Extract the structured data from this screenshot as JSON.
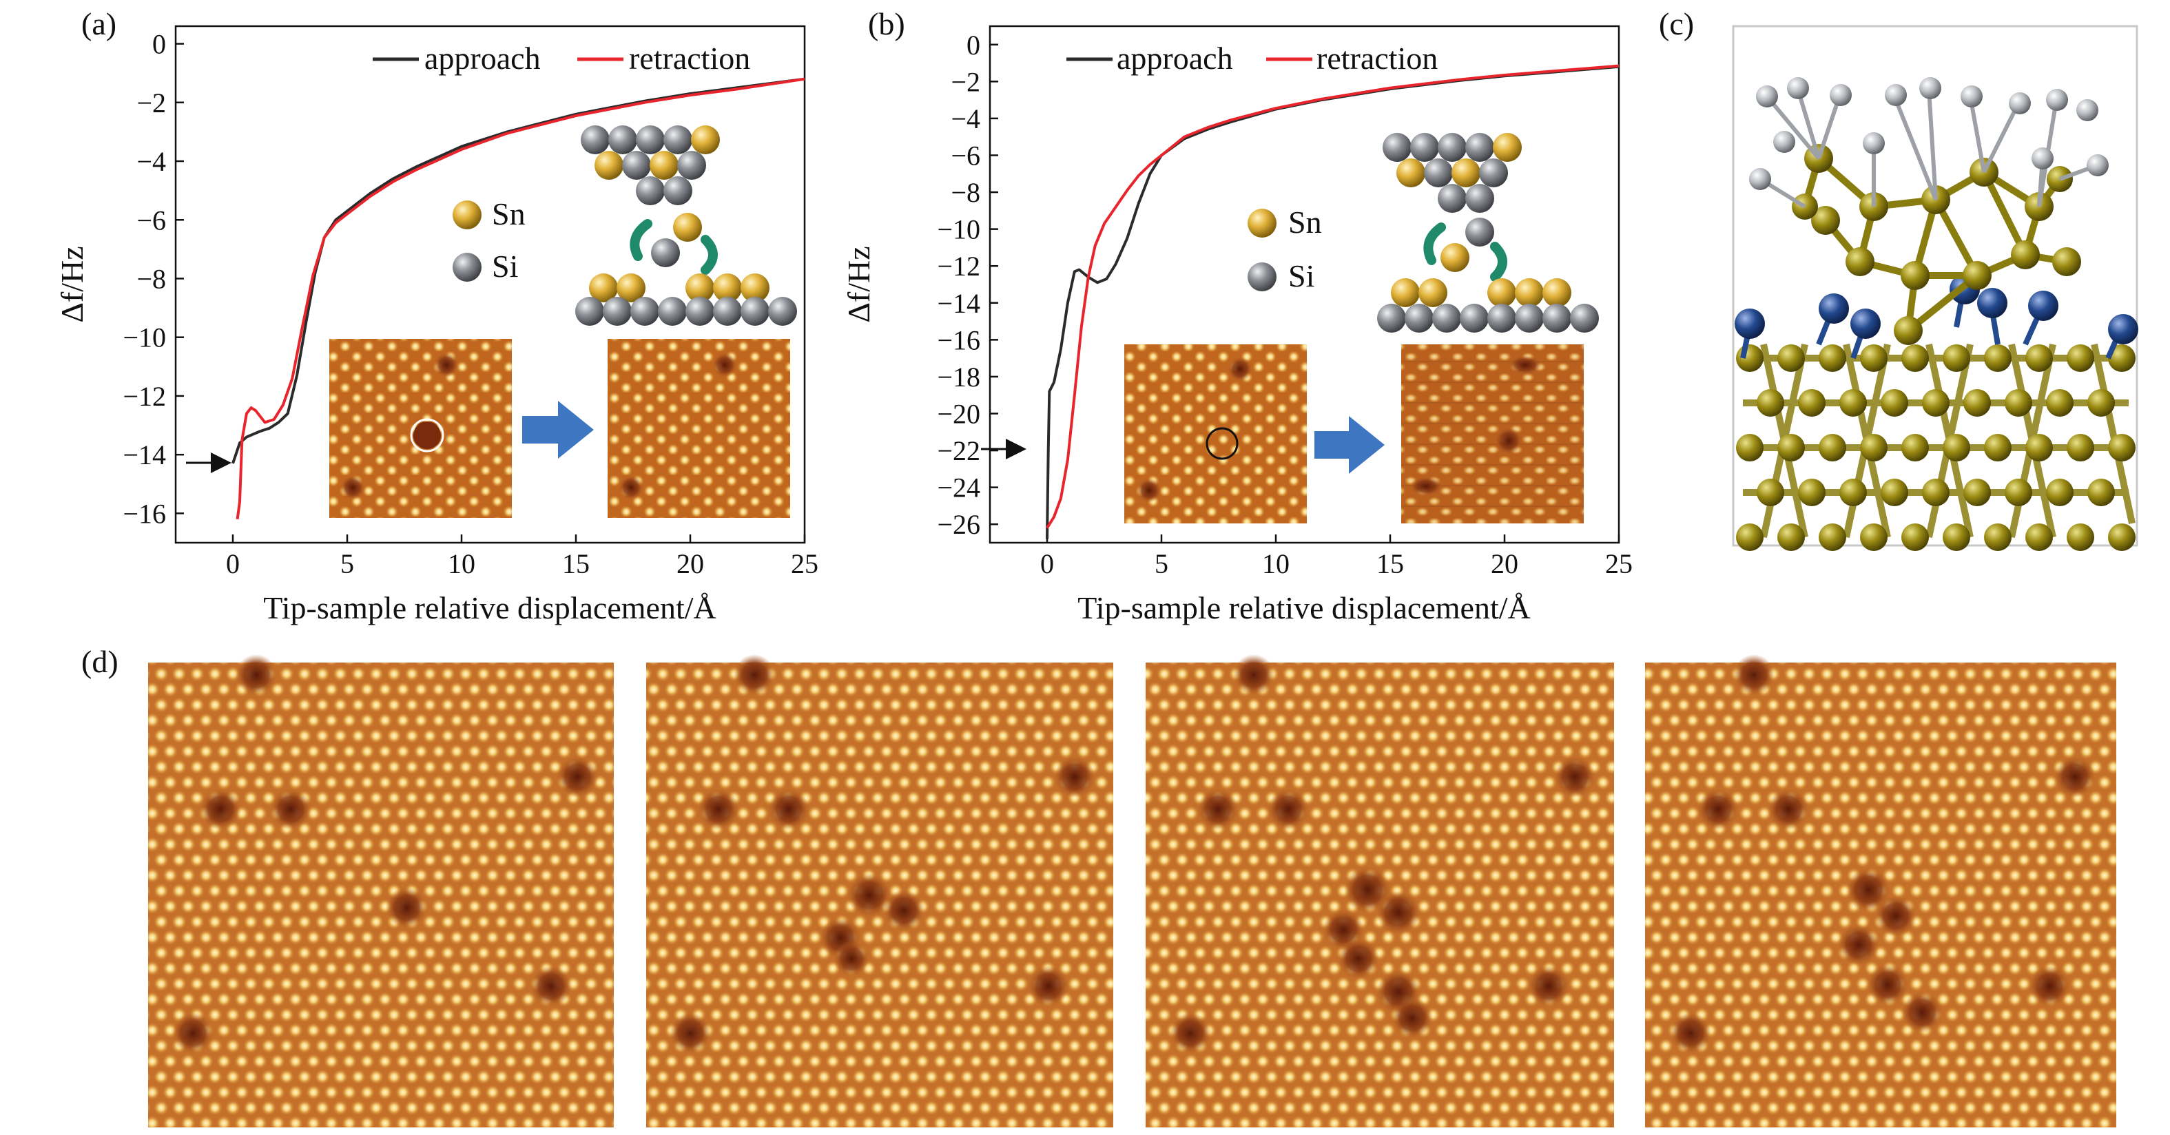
{
  "panels": {
    "a": {
      "label": "(a)"
    },
    "b": {
      "label": "(b)"
    },
    "c": {
      "label": "(c)"
    },
    "d": {
      "label": "(d)"
    }
  },
  "atoms": {
    "sn": "Sn",
    "si": "Si"
  },
  "colors": {
    "approach": "#2b2b2b",
    "retraction": "#e8242c",
    "sn_atom": "#d7a81e",
    "si_atom": "#8a8d92",
    "arrow_blue": "#3f76c2",
    "arrow_green": "#1f8a6a",
    "n_atom": "#23498f",
    "substrate_atom": "#9a8a12",
    "h_atom": "#b9bcc1"
  },
  "chart_data": [
    {
      "type": "line",
      "panel": "a",
      "xlabel": "Tip-sample relative displacement/Å",
      "ylabel": "Δf/Hz",
      "xlim": [
        -2.5,
        25
      ],
      "ylim": [
        -17,
        0.6
      ],
      "xticks": [
        0,
        5,
        10,
        15,
        20,
        25
      ],
      "yticks": [
        0,
        -2,
        -4,
        -6,
        -8,
        -10,
        -12,
        -14,
        -16
      ],
      "legend_position": "top-right",
      "grid": false,
      "series": [
        {
          "name": "approach",
          "x": [
            0.0,
            0.3,
            0.6,
            0.9,
            1.2,
            1.6,
            2.0,
            2.4,
            2.8,
            3.2,
            3.6,
            4.0,
            4.5,
            5.0,
            6.0,
            7.0,
            8.0,
            10.0,
            12.0,
            15.0,
            18.0,
            20.0,
            22.0,
            25.0
          ],
          "y": [
            -14.3,
            -13.6,
            -13.4,
            -13.3,
            -13.2,
            -13.1,
            -12.9,
            -12.6,
            -11.3,
            -9.5,
            -7.8,
            -6.6,
            -6.0,
            -5.7,
            -5.1,
            -4.6,
            -4.2,
            -3.5,
            -3.0,
            -2.4,
            -1.95,
            -1.7,
            -1.5,
            -1.2
          ]
        },
        {
          "name": "retraction",
          "x": [
            0.2,
            0.3,
            0.4,
            0.6,
            0.8,
            1.0,
            1.4,
            1.8,
            2.2,
            2.6,
            3.0,
            3.5,
            4.0,
            4.5,
            5.0,
            6.0,
            7.0,
            8.0,
            10.0,
            12.0,
            15.0,
            18.0,
            20.0,
            22.0,
            25.0
          ],
          "y": [
            -16.2,
            -15.6,
            -13.5,
            -12.6,
            -12.4,
            -12.5,
            -12.9,
            -12.8,
            -12.3,
            -11.4,
            -9.8,
            -7.9,
            -6.6,
            -6.1,
            -5.8,
            -5.2,
            -4.7,
            -4.3,
            -3.6,
            -3.05,
            -2.45,
            -2.0,
            -1.75,
            -1.55,
            -1.2
          ]
        }
      ]
    },
    {
      "type": "line",
      "panel": "b",
      "xlabel": "Tip-sample relative displacement/Å",
      "ylabel": "Δf/Hz",
      "xlim": [
        -2.5,
        25
      ],
      "ylim": [
        -27,
        1
      ],
      "xticks": [
        0,
        5,
        10,
        15,
        20,
        25
      ],
      "yticks": [
        0,
        -2,
        -4,
        -6,
        -8,
        -10,
        -12,
        -14,
        -16,
        -18,
        -20,
        -22,
        -24,
        -26
      ],
      "legend_position": "top-right",
      "grid": false,
      "series": [
        {
          "name": "approach",
          "x": [
            0.0,
            0.05,
            0.1,
            0.3,
            0.6,
            0.9,
            1.2,
            1.4,
            1.8,
            2.2,
            2.6,
            3.0,
            3.5,
            4.0,
            4.5,
            5.0,
            6.0,
            7.0,
            8.0,
            10.0,
            12.0,
            15.0,
            18.0,
            20.0,
            22.0,
            25.0
          ],
          "y": [
            -26.8,
            -22.0,
            -18.8,
            -18.3,
            -16.5,
            -14.0,
            -12.3,
            -12.2,
            -12.6,
            -12.9,
            -12.7,
            -11.9,
            -10.5,
            -8.6,
            -7.0,
            -6.0,
            -5.1,
            -4.6,
            -4.2,
            -3.5,
            -3.0,
            -2.4,
            -1.95,
            -1.7,
            -1.5,
            -1.2
          ]
        },
        {
          "name": "retraction",
          "x": [
            0.0,
            0.3,
            0.6,
            0.9,
            1.2,
            1.5,
            1.8,
            2.1,
            2.5,
            3.0,
            3.5,
            4.0,
            4.5,
            5.0,
            6.0,
            7.0,
            8.0,
            10.0,
            12.0,
            15.0,
            18.0,
            20.0,
            22.0,
            25.0
          ],
          "y": [
            -26.2,
            -25.6,
            -24.6,
            -22.5,
            -19.0,
            -15.3,
            -12.6,
            -10.9,
            -9.7,
            -8.8,
            -7.9,
            -7.1,
            -6.5,
            -6.0,
            -5.0,
            -4.5,
            -4.1,
            -3.45,
            -2.95,
            -2.35,
            -1.9,
            -1.65,
            -1.45,
            -1.15
          ]
        }
      ]
    }
  ]
}
